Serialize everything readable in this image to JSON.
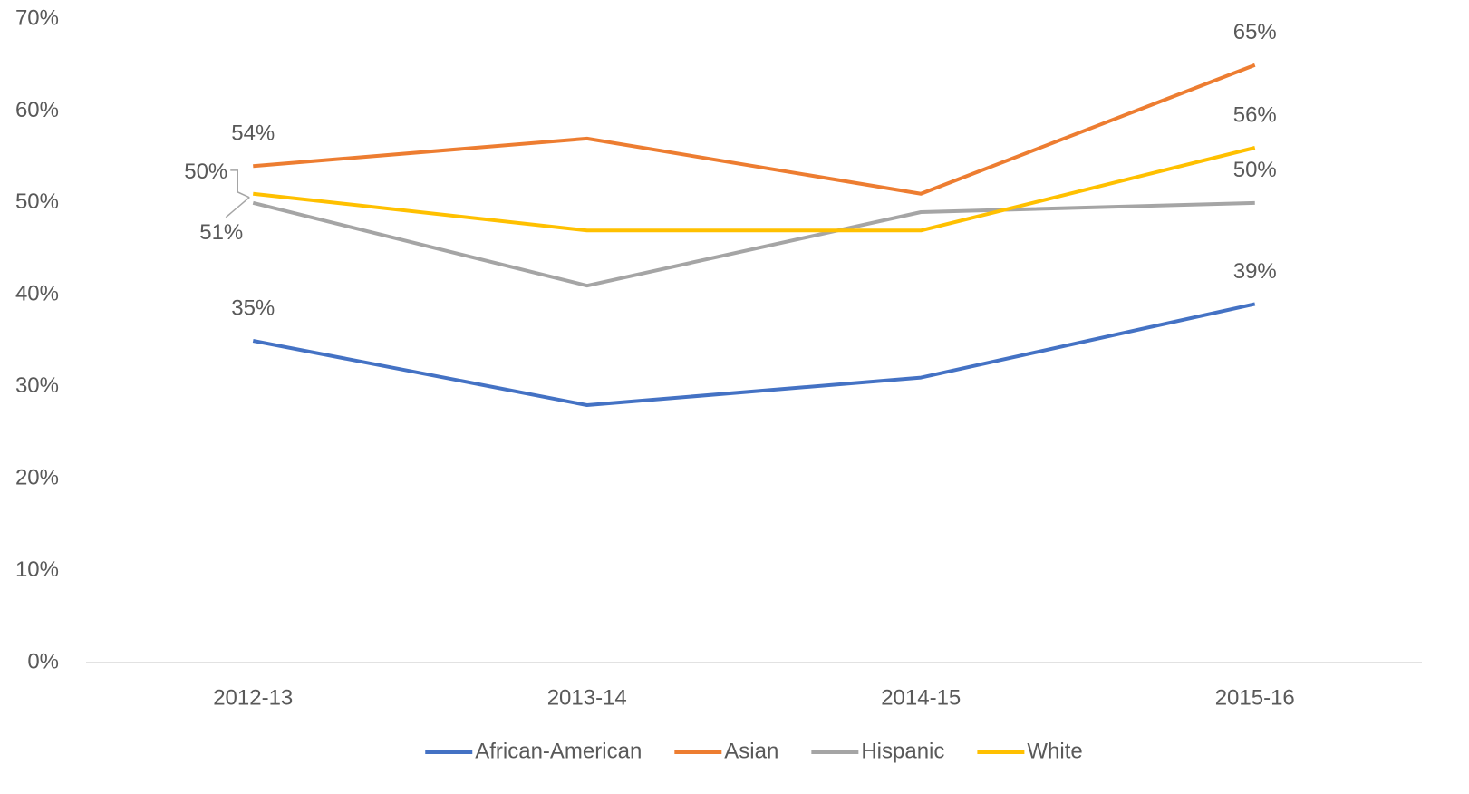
{
  "chart_data": {
    "type": "line",
    "categories": [
      "2012-13",
      "2013-14",
      "2014-15",
      "2015-16"
    ],
    "series": [
      {
        "name": "African-American",
        "color": "#4472c4",
        "values": [
          35,
          28,
          31,
          39
        ],
        "value_labels": [
          "35%",
          null,
          null,
          "39%"
        ]
      },
      {
        "name": "Asian",
        "color": "#ed7d31",
        "values": [
          54,
          57,
          51,
          65
        ],
        "value_labels": [
          "54%",
          null,
          null,
          "65%"
        ]
      },
      {
        "name": "Hispanic",
        "color": "#a5a5a5",
        "values": [
          50,
          41,
          49,
          50
        ],
        "value_labels": [
          "50%",
          null,
          null,
          "50%"
        ]
      },
      {
        "name": "White",
        "color": "#ffc000",
        "values": [
          51,
          47,
          47,
          56
        ],
        "value_labels": [
          "51%",
          null,
          null,
          "56%"
        ]
      }
    ],
    "ylim": [
      0,
      70
    ],
    "yticks": [
      {
        "value": 0,
        "label": "0%"
      },
      {
        "value": 10,
        "label": "10%"
      },
      {
        "value": 20,
        "label": "20%"
      },
      {
        "value": 30,
        "label": "30%"
      },
      {
        "value": 40,
        "label": "40%"
      },
      {
        "value": 50,
        "label": "50%"
      },
      {
        "value": 60,
        "label": "60%"
      },
      {
        "value": 70,
        "label": "70%"
      }
    ],
    "grid": false,
    "legend": "bottom"
  }
}
